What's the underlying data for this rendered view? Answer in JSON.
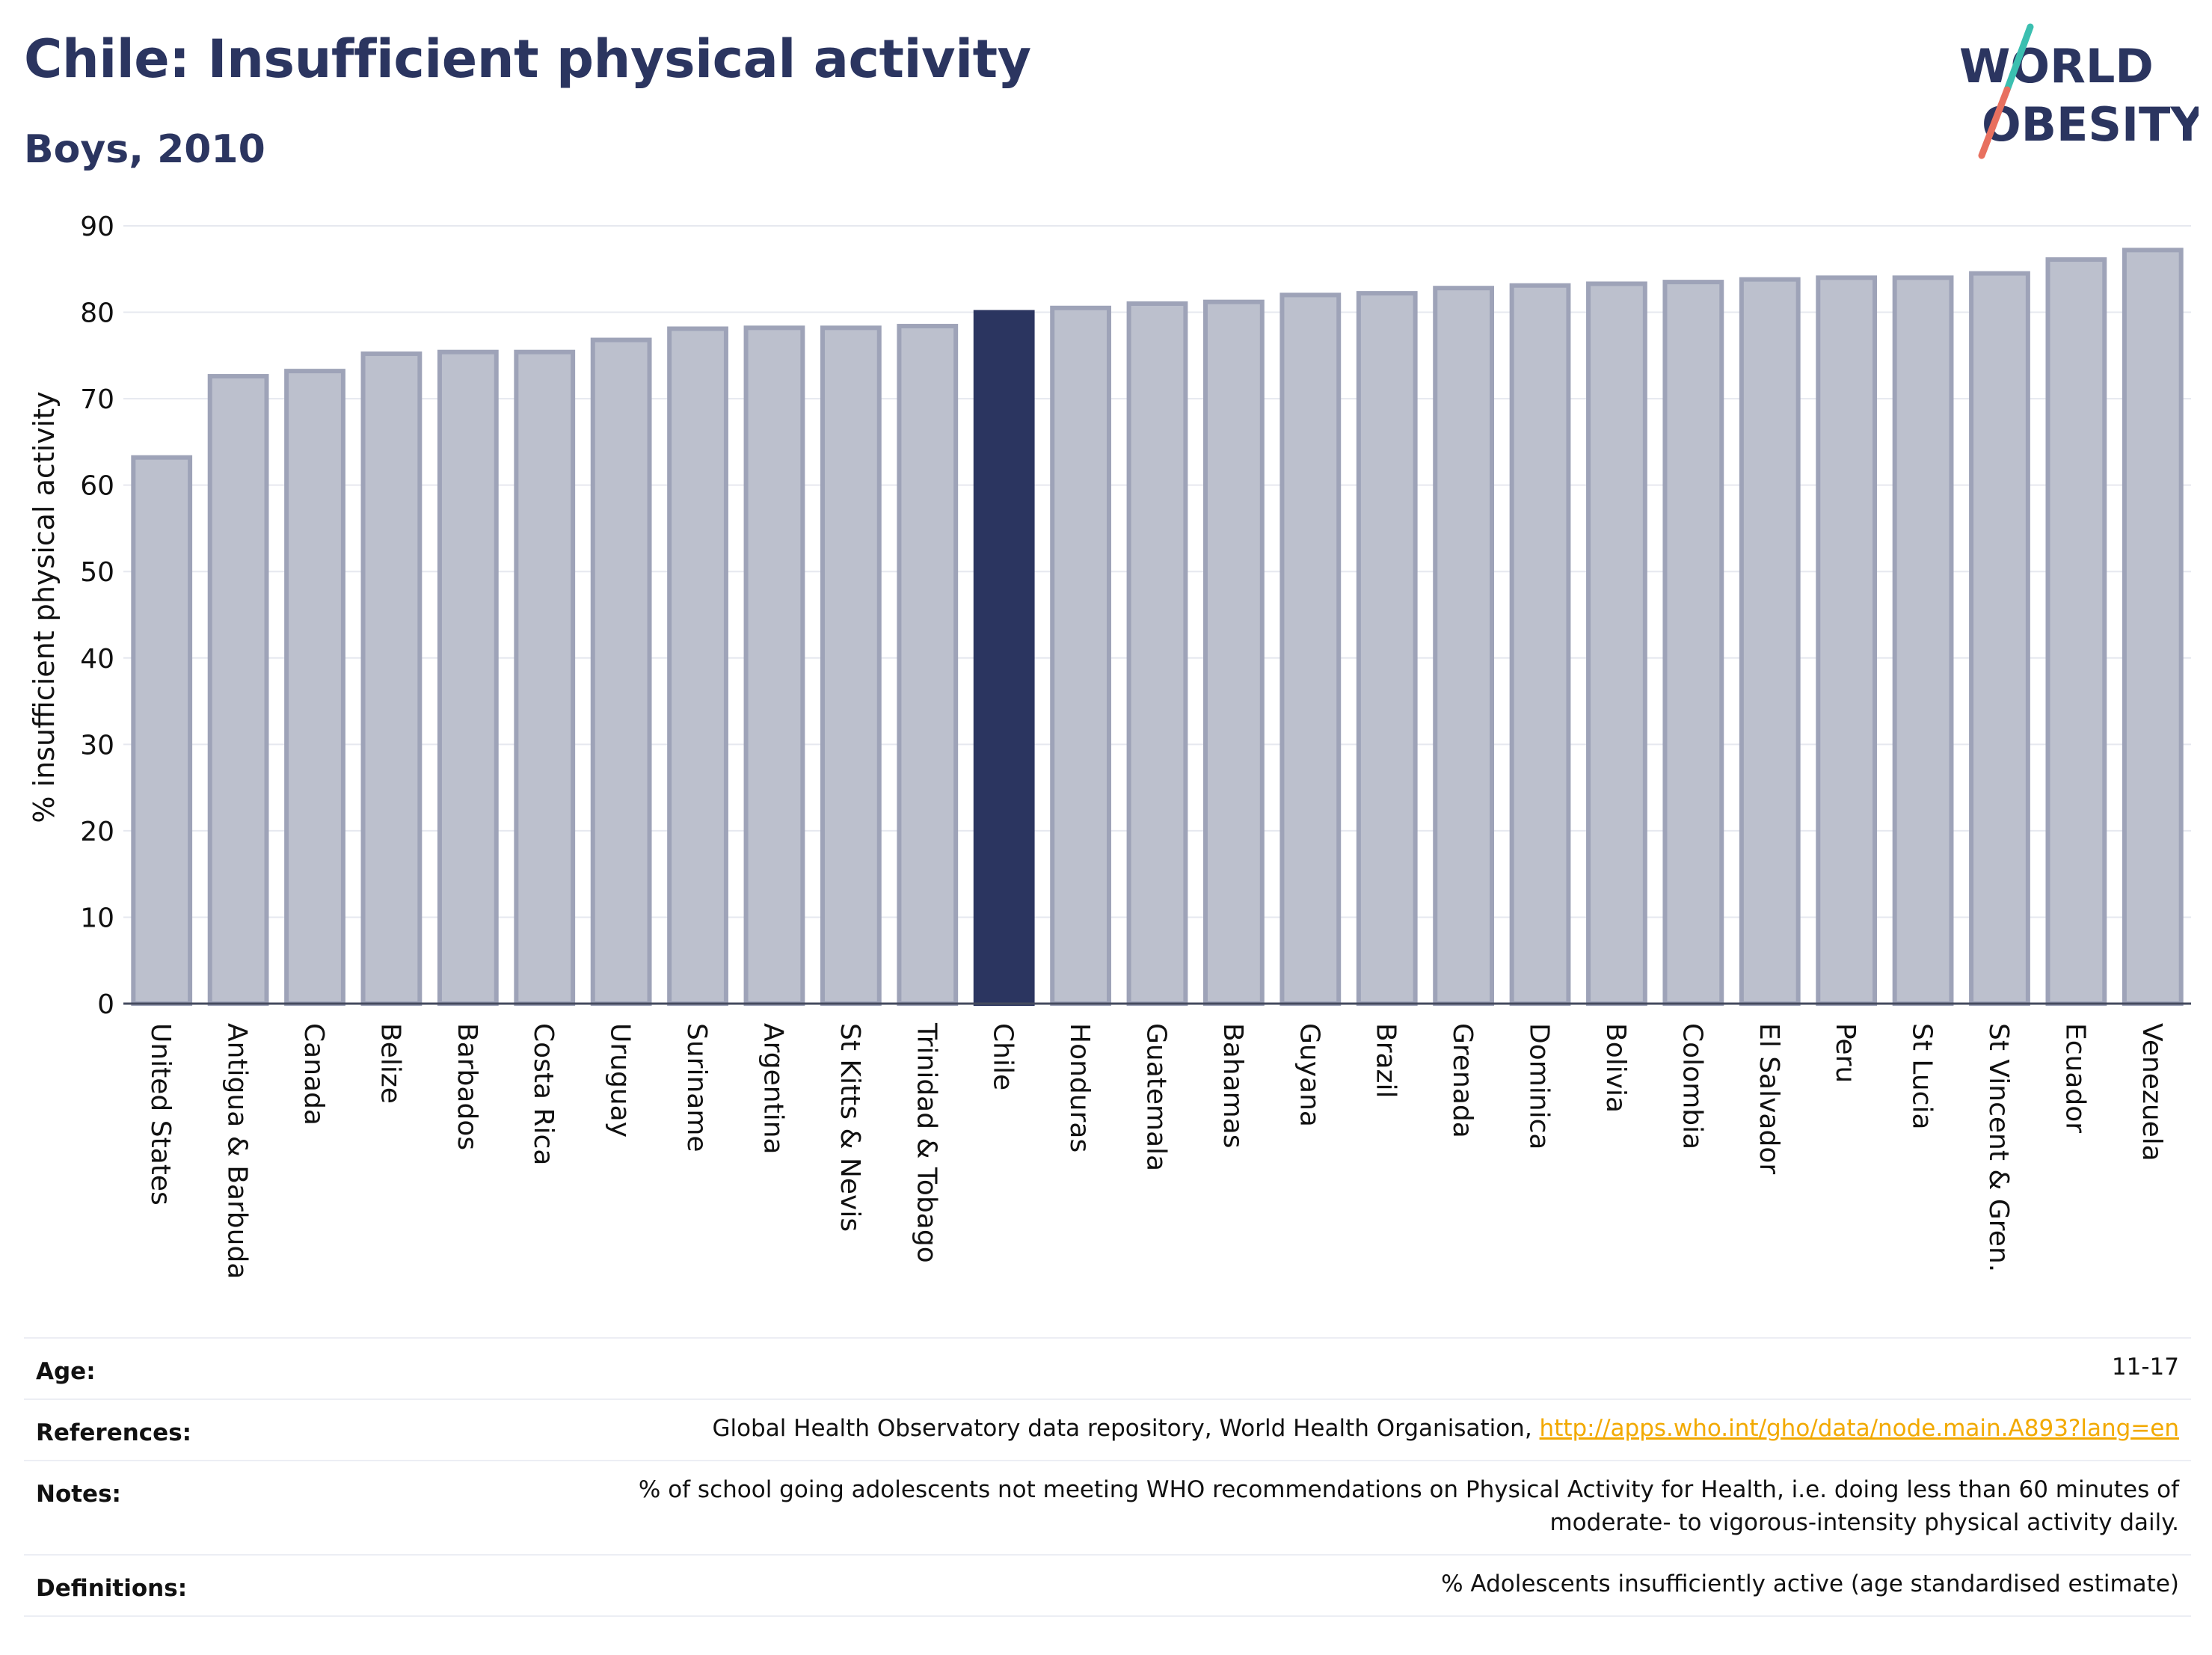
{
  "header": {
    "title": "Chile: Insufficient physical activity",
    "subtitle": "Boys, 2010"
  },
  "logo": {
    "line1": "WORLD",
    "line2": "OBESITY"
  },
  "colors": {
    "highlight": "#2b3560",
    "bar_fill": "#bcc0cd",
    "bar_stroke": "#9ea3b8",
    "accent_teal": "#3bbfb0",
    "accent_coral": "#e8705f",
    "link": "#f2a900"
  },
  "chart_data": {
    "type": "bar",
    "ylabel": "% insufficient physical activity",
    "ylim": [
      0,
      90
    ],
    "yticks": [
      0,
      10,
      20,
      30,
      40,
      50,
      60,
      70,
      80,
      90
    ],
    "highlight": "Chile",
    "categories": [
      "United States",
      "Antigua & Barbuda",
      "Canada",
      "Belize",
      "Barbados",
      "Costa Rica",
      "Uruguay",
      "Suriname",
      "Argentina",
      "St Kitts & Nevis",
      "Trinidad & Tobago",
      "Chile",
      "Honduras",
      "Guatemala",
      "Bahamas",
      "Guyana",
      "Brazil",
      "Grenada",
      "Dominica",
      "Bolivia",
      "Colombia",
      "El Salvador",
      "Peru",
      "St Lucia",
      "St Vincent & Gren.",
      "Ecuador",
      "Venezuela"
    ],
    "values": [
      63.2,
      72.6,
      73.2,
      75.2,
      75.4,
      75.4,
      76.8,
      78.1,
      78.2,
      78.2,
      78.4,
      80.0,
      80.5,
      81.0,
      81.2,
      82.0,
      82.2,
      82.8,
      83.1,
      83.3,
      83.5,
      83.8,
      84.0,
      84.0,
      84.5,
      86.1,
      87.2
    ],
    "grid": true
  },
  "meta": {
    "age_label": "Age:",
    "age_value": "11-17",
    "references_label": "References:",
    "references_text": "Global Health Observatory data repository, World Health Organisation, ",
    "references_link": "http://apps.who.int/gho/data/node.main.A893?lang=en",
    "notes_label": "Notes:",
    "notes_line1": "% of school going adolescents not meeting WHO recommendations on Physical Activity for Health, i.e. doing less than 60 minutes of",
    "notes_line2": "moderate- to vigorous-intensity physical activity daily.",
    "definitions_label": "Definitions:",
    "definitions_value": "% Adolescents insufficiently active (age standardised estimate)"
  }
}
